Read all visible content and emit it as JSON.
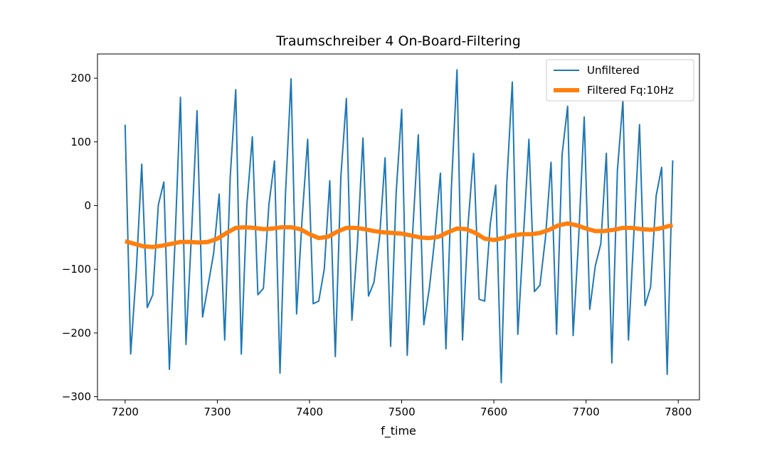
{
  "chart_data": {
    "type": "line",
    "title": "Traumschreiber 4 On-Board-Filtering",
    "xlabel": "f_time",
    "ylabel": "",
    "xlim": [
      7170,
      7823
    ],
    "ylim": [
      -305,
      238
    ],
    "xticks": [
      7200,
      7300,
      7400,
      7500,
      7600,
      7700,
      7800
    ],
    "yticks": [
      -300,
      -200,
      -100,
      0,
      100,
      200
    ],
    "xtick_labels": [
      "7200",
      "7300",
      "7400",
      "7500",
      "7600",
      "7700",
      "7800"
    ],
    "ytick_labels": [
      "−300",
      "−200",
      "−100",
      "0",
      "100",
      "200"
    ],
    "grid": false,
    "legend_position": "top-right",
    "colors": {
      "unfiltered": "#1f77b4",
      "filtered": "#ff7f0e"
    },
    "series": [
      {
        "name": "Unfiltered",
        "color": "#1f77b4",
        "x": [
          7200,
          7206,
          7212,
          7218,
          7224,
          7230,
          7236,
          7242,
          7248,
          7254,
          7260,
          7266,
          7272,
          7278,
          7284,
          7290,
          7296,
          7302,
          7308,
          7314,
          7320,
          7326,
          7332,
          7338,
          7344,
          7350,
          7356,
          7362,
          7368,
          7374,
          7380,
          7386,
          7392,
          7398,
          7404,
          7410,
          7416,
          7422,
          7428,
          7434,
          7440,
          7446,
          7452,
          7458,
          7464,
          7470,
          7476,
          7482,
          7488,
          7494,
          7500,
          7506,
          7512,
          7518,
          7524,
          7530,
          7536,
          7542,
          7548,
          7554,
          7560,
          7566,
          7572,
          7578,
          7584,
          7590,
          7596,
          7602,
          7608,
          7614,
          7620,
          7626,
          7632,
          7638,
          7644,
          7650,
          7656,
          7662,
          7668,
          7674,
          7680,
          7686,
          7692,
          7698,
          7704,
          7710,
          7716,
          7722,
          7728,
          7734,
          7740,
          7746,
          7752,
          7758,
          7764,
          7770,
          7776,
          7782,
          7788,
          7794
        ],
        "values": [
          127,
          -233,
          -105,
          65,
          -160,
          -140,
          1,
          37,
          -257,
          -60,
          170,
          -218,
          -45,
          149,
          -175,
          -125,
          -75,
          18,
          -211,
          45,
          182,
          -233,
          0,
          108,
          -140,
          -130,
          2,
          70,
          -263,
          20,
          199,
          -170,
          -20,
          104,
          -154,
          -150,
          -100,
          39,
          -237,
          45,
          168,
          -180,
          -60,
          106,
          -142,
          -120,
          -50,
          75,
          -221,
          20,
          151,
          -235,
          -40,
          111,
          -187,
          -130,
          -50,
          51,
          -225,
          30,
          213,
          -211,
          -30,
          82,
          -147,
          -150,
          -30,
          32,
          -278,
          35,
          194,
          -202,
          -50,
          104,
          -135,
          -125,
          -50,
          68,
          -202,
          80,
          156,
          -204,
          -50,
          139,
          -163,
          -95,
          -60,
          82,
          -247,
          55,
          165,
          -211,
          -40,
          127,
          -157,
          -128,
          15,
          60,
          -265,
          71
        ]
      },
      {
        "name": "Filtered Fq:10Hz",
        "color": "#ff7f0e",
        "x": [
          7200,
          7210,
          7220,
          7230,
          7240,
          7250,
          7260,
          7270,
          7280,
          7290,
          7300,
          7310,
          7320,
          7330,
          7340,
          7350,
          7360,
          7370,
          7380,
          7390,
          7400,
          7410,
          7420,
          7430,
          7440,
          7450,
          7460,
          7470,
          7480,
          7490,
          7500,
          7510,
          7520,
          7530,
          7540,
          7550,
          7560,
          7570,
          7580,
          7590,
          7600,
          7610,
          7620,
          7630,
          7640,
          7650,
          7660,
          7670,
          7680,
          7690,
          7700,
          7710,
          7720,
          7730,
          7740,
          7750,
          7760,
          7770,
          7780,
          7790,
          7794
        ],
        "values": [
          -56,
          -60,
          -64,
          -65,
          -63,
          -60,
          -57,
          -57,
          -58,
          -57,
          -52,
          -43,
          -35,
          -34,
          -35,
          -37,
          -36,
          -34,
          -34,
          -37,
          -45,
          -51,
          -49,
          -41,
          -35,
          -35,
          -37,
          -40,
          -42,
          -43,
          -44,
          -47,
          -50,
          -51,
          -49,
          -42,
          -36,
          -37,
          -43,
          -52,
          -54,
          -51,
          -47,
          -45,
          -45,
          -43,
          -38,
          -31,
          -28,
          -31,
          -36,
          -40,
          -40,
          -38,
          -35,
          -35,
          -37,
          -38,
          -36,
          -32,
          -31
        ]
      }
    ]
  }
}
